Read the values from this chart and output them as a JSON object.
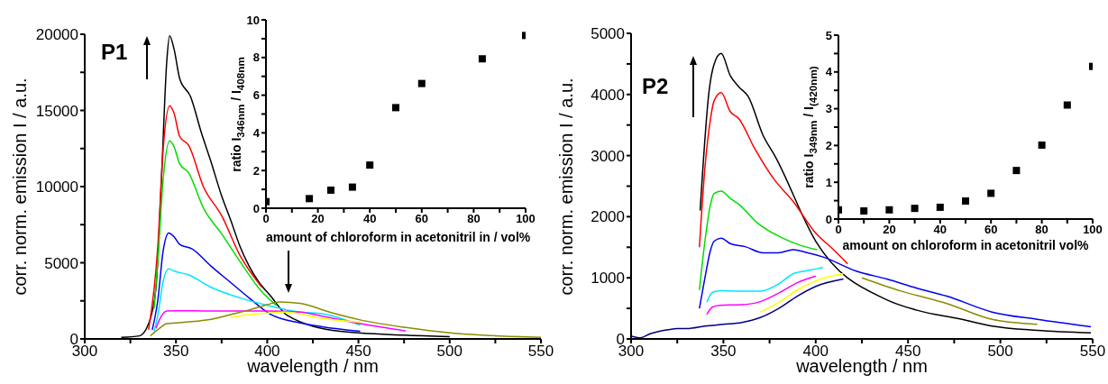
{
  "chart_data": [
    {
      "type": "line",
      "xlabel": "wavelength / nm",
      "ylabel": "corr. norm. emission  I / a.u.",
      "annotations": [
        "P1"
      ],
      "xlim": [
        300,
        550
      ],
      "xticks": [
        300,
        {
          "value": 325,
          "label": null
        },
        350,
        {
          "value": 375,
          "label": null
        },
        400,
        {
          "value": 425,
          "label": null
        },
        450,
        {
          "value": 475,
          "label": null
        },
        500,
        {
          "value": 525,
          "label": null
        },
        550
      ],
      "ylim": [
        0,
        20000
      ],
      "yticks": [
        0,
        {
          "value": 2500,
          "label": null
        },
        5000,
        {
          "value": 7500,
          "label": null
        },
        10000,
        {
          "value": 12500,
          "label": null
        },
        15000,
        {
          "value": 17500,
          "label": null
        },
        20000
      ],
      "series": [
        {
          "color": "#000000",
          "x": [
            320,
            330,
            335,
            339,
            342,
            345,
            346.5,
            349,
            352,
            358,
            364,
            369,
            375,
            380,
            385,
            390,
            395,
            402,
            411,
            440,
            475,
            500
          ],
          "values": [
            100,
            200,
            1000,
            3300,
            10400,
            18300,
            19900,
            19000,
            17100,
            15900,
            13500,
            11700,
            9400,
            7800,
            6100,
            4800,
            3800,
            2800,
            1540,
            500,
            250,
            150
          ]
        },
        {
          "color": "#ff0000",
          "x": [
            335,
            340,
            343,
            346.5,
            349,
            352,
            357,
            365,
            375,
            385,
            397
          ],
          "values": [
            600,
            6000,
            12500,
            15300,
            14800,
            13300,
            12700,
            10000,
            8100,
            5500,
            3400
          ]
        },
        {
          "color": "#00dd00",
          "x": [
            338,
            340,
            343,
            346.5,
            349,
            352,
            357,
            365,
            375,
            385,
            397,
            405
          ],
          "values": [
            2000,
            5000,
            10500,
            13000,
            12600,
            11500,
            10900,
            8600,
            6900,
            5100,
            3100,
            2200
          ]
        },
        {
          "color": "#0000ee",
          "x": [
            337,
            340,
            343,
            346,
            349,
            352,
            359,
            369,
            379,
            390,
            402,
            418,
            430,
            451
          ],
          "values": [
            600,
            2500,
            5800,
            6960,
            6700,
            6200,
            5900,
            4800,
            3800,
            2700,
            1600,
            1050,
            800,
            500
          ]
        },
        {
          "color": "#00e5ff",
          "x": [
            338,
            340,
            343,
            346,
            349,
            357,
            369,
            385,
            402,
            411,
            420,
            430,
            451
          ],
          "values": [
            500,
            1500,
            3800,
            4600,
            4450,
            4200,
            3400,
            2700,
            2150,
            1900,
            1750,
            1650,
            900
          ]
        },
        {
          "color": "#ff00ff",
          "x": [
            339,
            342,
            345,
            350,
            360,
            370,
            380,
            390,
            400,
            418,
            430,
            451,
            476
          ],
          "values": [
            700,
            1500,
            1830,
            1850,
            1850,
            1830,
            1840,
            1830,
            1830,
            1760,
            1500,
            1000,
            520
          ]
        },
        {
          "color": "#ffff00",
          "x": [
            380,
            390,
            400,
            410,
            430,
            451
          ],
          "values": [
            1400,
            1600,
            1700,
            1760,
            1350,
            1100
          ]
        },
        {
          "color": "#8b8b00",
          "x": [
            336,
            341,
            345,
            350,
            360,
            370,
            375,
            380,
            390,
            400,
            406.7,
            418,
            435,
            451,
            476,
            500,
            525,
            550
          ],
          "values": [
            200,
            700,
            1000,
            1050,
            1150,
            1300,
            1440,
            1600,
            1900,
            2250,
            2430,
            2340,
            1730,
            1250,
            750,
            400,
            200,
            100
          ]
        }
      ]
    },
    {
      "type": "scatter",
      "marker": "square",
      "xlabel": "amount of chloroform in acetonitril in  / vol%",
      "ylabel": "ratio I$_{346nm}$ / I$_{408nm}$",
      "xlim": [
        0,
        100
      ],
      "xticks": [
        0,
        {
          "value": 10,
          "label": null
        },
        20,
        {
          "value": 30,
          "label": null
        },
        40,
        {
          "value": 50,
          "label": null
        },
        60,
        {
          "value": 70,
          "label": null
        },
        80,
        {
          "value": 90,
          "label": null
        },
        100
      ],
      "ylim": [
        0,
        10
      ],
      "yticks": [
        0,
        {
          "value": 1,
          "label": null
        },
        2,
        {
          "value": 3,
          "label": null
        },
        4,
        {
          "value": 5,
          "label": null
        },
        6,
        {
          "value": 7,
          "label": null
        },
        8,
        {
          "value": 9,
          "label": null
        },
        10
      ],
      "series": [
        {
          "color": "#000000",
          "x": [
            0,
            16.7,
            25,
            33.3,
            40,
            50,
            60,
            83.3,
            100
          ],
          "values": [
            0.35,
            0.51,
            0.96,
            1.12,
            2.29,
            5.34,
            6.62,
            7.93,
            9.17
          ]
        }
      ]
    },
    {
      "type": "line",
      "xlabel": "wavelength / nm",
      "ylabel": "corr. norm. emission  I / a.u.",
      "annotations": [
        "P2"
      ],
      "xlim": [
        300,
        550
      ],
      "xticks": [
        300,
        {
          "value": 325,
          "label": null
        },
        350,
        {
          "value": 375,
          "label": null
        },
        400,
        {
          "value": 425,
          "label": null
        },
        450,
        {
          "value": 475,
          "label": null
        },
        500,
        {
          "value": 525,
          "label": null
        },
        550
      ],
      "ylim": [
        0,
        5000
      ],
      "yticks": [
        0,
        {
          "value": 500,
          "label": null
        },
        1000,
        {
          "value": 1500,
          "label": null
        },
        2000,
        {
          "value": 2500,
          "label": null
        },
        3000,
        {
          "value": 3500,
          "label": null
        },
        4000,
        {
          "value": 4500,
          "label": null
        },
        5000
      ],
      "series": [
        {
          "color": "#000000",
          "x": [
            337.4,
            342.3,
            345,
            348.8,
            353.7,
            358.5,
            363.4,
            371.5,
            378,
            400,
            438.5,
            454.8,
            479.2,
            495.5,
            520,
            549
          ],
          "values": [
            2100,
            4070,
            4500,
            4670,
            4310,
            4120,
            3970,
            3330,
            2990,
            1600,
            640,
            470,
            320,
            210,
            140,
            100
          ]
        },
        {
          "color": "#ff0000",
          "x": [
            337,
            340,
            343,
            345,
            348.8,
            353.7,
            358.5,
            366.7,
            378,
            387.8,
            399.2,
            410,
            417.3
          ],
          "values": [
            1500,
            2800,
            3600,
            3900,
            4030,
            3720,
            3600,
            3130,
            2590,
            2250,
            1760,
            1450,
            1230
          ]
        },
        {
          "color": "#00dd00",
          "x": [
            337,
            340,
            343,
            345,
            348.8,
            353.7,
            358.5,
            368.3,
            381.3,
            391,
            400.8
          ],
          "values": [
            800,
            1600,
            2200,
            2380,
            2420,
            2300,
            2200,
            1900,
            1660,
            1540,
            1460
          ]
        },
        {
          "color": "#0000ee",
          "x": [
            337,
            340,
            343,
            345,
            348.8,
            353.7,
            361.8,
            371.5,
            379.7,
            387.8,
            394.3,
            404,
            422,
            438.5,
            454.8,
            471,
            495.5,
            520,
            549
          ],
          "values": [
            500,
            1000,
            1450,
            1600,
            1650,
            1560,
            1510,
            1410,
            1410,
            1460,
            1420,
            1340,
            1110,
            980,
            830,
            700,
            440,
            320,
            200
          ]
        },
        {
          "color": "#00e5ff",
          "x": [
            341,
            344,
            348,
            360,
            370,
            380,
            388,
            396,
            404
          ],
          "values": [
            600,
            760,
            790,
            780,
            780,
            900,
            1070,
            1120,
            1170
          ]
        },
        {
          "color": "#ff00ff",
          "x": [
            341,
            344,
            348,
            360,
            370,
            380,
            390,
            400
          ],
          "values": [
            400,
            520,
            550,
            560,
            610,
            750,
            920,
            1030
          ]
        },
        {
          "color": "#ffff00",
          "x": [
            370,
            380,
            390,
            400,
            415
          ],
          "values": [
            440,
            600,
            800,
            950,
            1070
          ]
        },
        {
          "color": "#8b8b00",
          "x": [
            425,
            446.6,
            471,
            495.5,
            520
          ],
          "values": [
            1000,
            780,
            580,
            320,
            240
          ]
        },
        {
          "color": "#000080",
          "x": [
            300,
            305,
            310,
            320,
            325,
            330,
            340,
            350,
            360,
            370,
            380,
            390,
            400,
            415
          ],
          "values": [
            50,
            20,
            80,
            150,
            170,
            170,
            210,
            240,
            270,
            350,
            500,
            700,
            860,
            980
          ]
        }
      ]
    },
    {
      "type": "scatter",
      "marker": "square",
      "xlabel": "amount on chloroform in acetonitril vol%",
      "ylabel": "ratio I$_{349nm}$ / I$_{(420nm)}$",
      "xlim": [
        0,
        100
      ],
      "xticks": [
        0,
        {
          "value": 10,
          "label": null
        },
        20,
        {
          "value": 30,
          "label": null
        },
        40,
        {
          "value": 50,
          "label": null
        },
        60,
        {
          "value": 70,
          "label": null
        },
        80,
        {
          "value": 90,
          "label": null
        },
        100
      ],
      "ylim": [
        0,
        5
      ],
      "yticks": [
        0,
        {
          "value": 0.5,
          "label": null
        },
        1,
        {
          "value": 1.5,
          "label": null
        },
        2,
        {
          "value": 2.5,
          "label": null
        },
        3,
        {
          "value": 3.5,
          "label": null
        },
        4,
        {
          "value": 4.5,
          "label": null
        },
        5
      ],
      "series": [
        {
          "color": "#000000",
          "x": [
            0,
            10,
            20,
            30,
            40,
            50,
            60,
            70,
            80,
            90,
            100
          ],
          "values": [
            0.25,
            0.22,
            0.25,
            0.29,
            0.32,
            0.49,
            0.7,
            1.32,
            2.01,
            3.1,
            4.15
          ]
        }
      ]
    }
  ]
}
